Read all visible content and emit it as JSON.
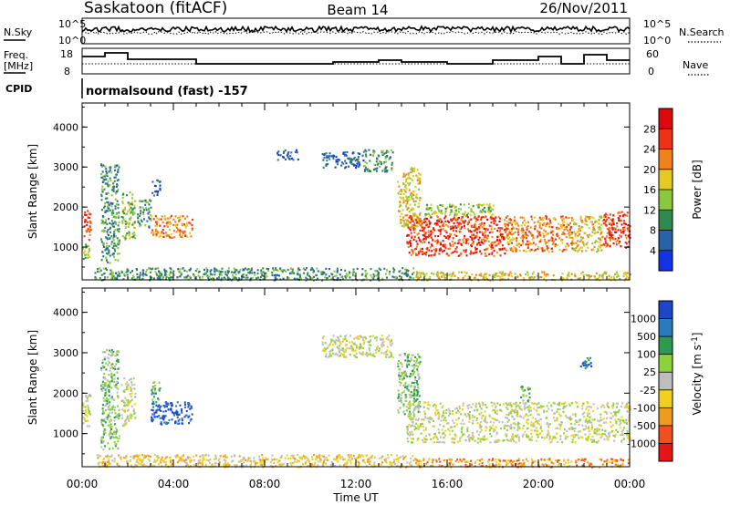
{
  "header": {
    "station": "Saskatoon (fitACF)",
    "beam": "Beam 14",
    "date": "26/Nov/2011"
  },
  "noise_panel": {
    "left_label": "N.Sky",
    "right_label": "N.Search",
    "left_ticks": [
      "10^5",
      "10^0"
    ],
    "right_ticks": [
      "10^5",
      "10^0"
    ]
  },
  "freq_panel": {
    "left_label_1": "Freq.",
    "left_label_2": "[MHz]",
    "right_label": "Nave",
    "left_ticks": [
      "18",
      "8"
    ],
    "right_ticks": [
      "60",
      "0"
    ]
  },
  "cpid": {
    "label": "CPID",
    "value": "normalsound (fast) -157"
  },
  "x_axis": {
    "title": "Time UT",
    "ticks": [
      "00:00",
      "04:00",
      "08:00",
      "12:00",
      "16:00",
      "20:00",
      "00:00"
    ]
  },
  "chart_data": [
    {
      "type": "heatmap",
      "name": "Power",
      "xlabel": "Time UT",
      "ylabel": "Slant Range [km]",
      "xlim": [
        0,
        24
      ],
      "ylim": [
        180,
        4600
      ],
      "yticks": [
        "1000",
        "2000",
        "3000",
        "4000"
      ],
      "colorbar_label": "Power [dB]",
      "colorbar_ticks": [
        "4",
        "8",
        "12",
        "16",
        "20",
        "24",
        "28"
      ],
      "colorbar_colors": [
        "#1432e6",
        "#2a62a8",
        "#2f8a50",
        "#8cc83c",
        "#e6c81e",
        "#f0821e",
        "#ee3214",
        "#dc0a0a"
      ],
      "regions": [
        {
          "t": [
            0.0,
            0.35
          ],
          "r": [
            1200,
            2000
          ],
          "level": 6
        },
        {
          "t": [
            0.0,
            0.35
          ],
          "r": [
            700,
            1100
          ],
          "level": 3
        },
        {
          "t": [
            0.8,
            1.6
          ],
          "r": [
            600,
            3100
          ],
          "level": 2
        },
        {
          "t": [
            1.7,
            2.3
          ],
          "r": [
            1200,
            2400
          ],
          "level": 3
        },
        {
          "t": [
            2.4,
            3.0
          ],
          "r": [
            1500,
            2200
          ],
          "level": 2
        },
        {
          "t": [
            3.0,
            4.8
          ],
          "r": [
            1250,
            1800
          ],
          "level": 5
        },
        {
          "t": [
            3.0,
            3.4
          ],
          "r": [
            2300,
            2700
          ],
          "level": 1
        },
        {
          "t": [
            8.5,
            9.5
          ],
          "r": [
            3200,
            3450
          ],
          "level": 1
        },
        {
          "t": [
            10.5,
            12.3
          ],
          "r": [
            3000,
            3400
          ],
          "level": 1
        },
        {
          "t": [
            12.3,
            13.6
          ],
          "r": [
            2900,
            3450
          ],
          "level": 2
        },
        {
          "t": [
            13.8,
            14.8
          ],
          "r": [
            1500,
            3000
          ],
          "level": 4
        },
        {
          "t": [
            14.2,
            18.5
          ],
          "r": [
            800,
            1800
          ],
          "level": 6
        },
        {
          "t": [
            15.0,
            18.0
          ],
          "r": [
            1800,
            2100
          ],
          "level": 3
        },
        {
          "t": [
            18.5,
            21.5
          ],
          "r": [
            900,
            1800
          ],
          "level": 5
        },
        {
          "t": [
            21.5,
            22.8
          ],
          "r": [
            900,
            1800
          ],
          "level": 4
        },
        {
          "t": [
            22.8,
            24.0
          ],
          "r": [
            1000,
            1900
          ],
          "level": 6
        },
        {
          "t": [
            0.5,
            14.5
          ],
          "r": [
            190,
            500
          ],
          "level": 2
        },
        {
          "t": [
            14.5,
            24.0
          ],
          "r": [
            190,
            400
          ],
          "level": 4
        }
      ]
    },
    {
      "type": "heatmap",
      "name": "Velocity",
      "xlabel": "Time UT",
      "ylabel": "Slant Range [km]",
      "xlim": [
        0,
        24
      ],
      "ylim": [
        180,
        4600
      ],
      "yticks": [
        "1000",
        "2000",
        "3000",
        "4000"
      ],
      "colorbar_label": "Velocity [m s^-1]",
      "colorbar_ticks": [
        "1000",
        "500",
        "100",
        "25",
        "-25",
        "-100",
        "-500",
        "-1000"
      ],
      "colorbar_colors": [
        "#1e46c8",
        "#2a7abe",
        "#2e9a50",
        "#8cd23c",
        "#bebebe",
        "#f0d21e",
        "#f09a1e",
        "#f0501e",
        "#e61414"
      ],
      "regions": [
        {
          "t": [
            0.0,
            0.35
          ],
          "r": [
            1200,
            2000
          ],
          "level": 4
        },
        {
          "t": [
            0.8,
            1.6
          ],
          "r": [
            600,
            3100
          ],
          "level": 3
        },
        {
          "t": [
            1.7,
            2.3
          ],
          "r": [
            1200,
            2400
          ],
          "level": 4
        },
        {
          "t": [
            3.0,
            4.8
          ],
          "r": [
            1250,
            1800
          ],
          "level": 0
        },
        {
          "t": [
            3.0,
            3.4
          ],
          "r": [
            1800,
            2300
          ],
          "level": 2
        },
        {
          "t": [
            10.5,
            13.6
          ],
          "r": [
            2900,
            3450
          ],
          "level": 4
        },
        {
          "t": [
            13.8,
            14.8
          ],
          "r": [
            1500,
            3000
          ],
          "level": 3
        },
        {
          "t": [
            14.2,
            24.0
          ],
          "r": [
            800,
            1800
          ],
          "level": 4
        },
        {
          "t": [
            19.2,
            19.6
          ],
          "r": [
            1800,
            2200
          ],
          "level": 2
        },
        {
          "t": [
            21.8,
            22.3
          ],
          "r": [
            2600,
            2900
          ],
          "level": 1
        },
        {
          "t": [
            0.5,
            14.5
          ],
          "r": [
            190,
            500
          ],
          "level": 5
        },
        {
          "t": [
            14.5,
            24.0
          ],
          "r": [
            190,
            400
          ],
          "level": 6
        }
      ]
    }
  ]
}
